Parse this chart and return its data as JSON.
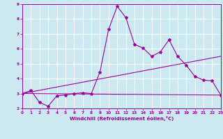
{
  "background_color": "#cce8f0",
  "grid_color": "#ffffff",
  "line_color": "#990099",
  "marker": "*",
  "xlabel": "Windchill (Refroidissement éolien,°C)",
  "xlabel_color": "#990099",
  "tick_color": "#990099",
  "xlim": [
    0,
    23
  ],
  "ylim": [
    2,
    9
  ],
  "xticks": [
    0,
    1,
    2,
    3,
    4,
    5,
    6,
    7,
    8,
    9,
    10,
    11,
    12,
    13,
    14,
    15,
    16,
    17,
    18,
    19,
    20,
    21,
    22,
    23
  ],
  "yticks": [
    2,
    3,
    4,
    5,
    6,
    7,
    8,
    9
  ],
  "series1_x": [
    0,
    1,
    2,
    3,
    4,
    5,
    6,
    7,
    8,
    9,
    10,
    11,
    12,
    13,
    14,
    15,
    16,
    17,
    18,
    19,
    20,
    21,
    22,
    23
  ],
  "series1_y": [
    3.0,
    3.2,
    2.4,
    2.15,
    2.85,
    2.9,
    3.0,
    3.05,
    3.0,
    4.45,
    7.3,
    8.85,
    8.1,
    6.3,
    6.05,
    5.5,
    5.8,
    6.6,
    5.5,
    4.9,
    4.15,
    3.9,
    3.85,
    2.9
  ],
  "series2_x": [
    0,
    23
  ],
  "series2_y": [
    3.0,
    5.5
  ],
  "series3_x": [
    0,
    23
  ],
  "series3_y": [
    3.0,
    2.9
  ]
}
